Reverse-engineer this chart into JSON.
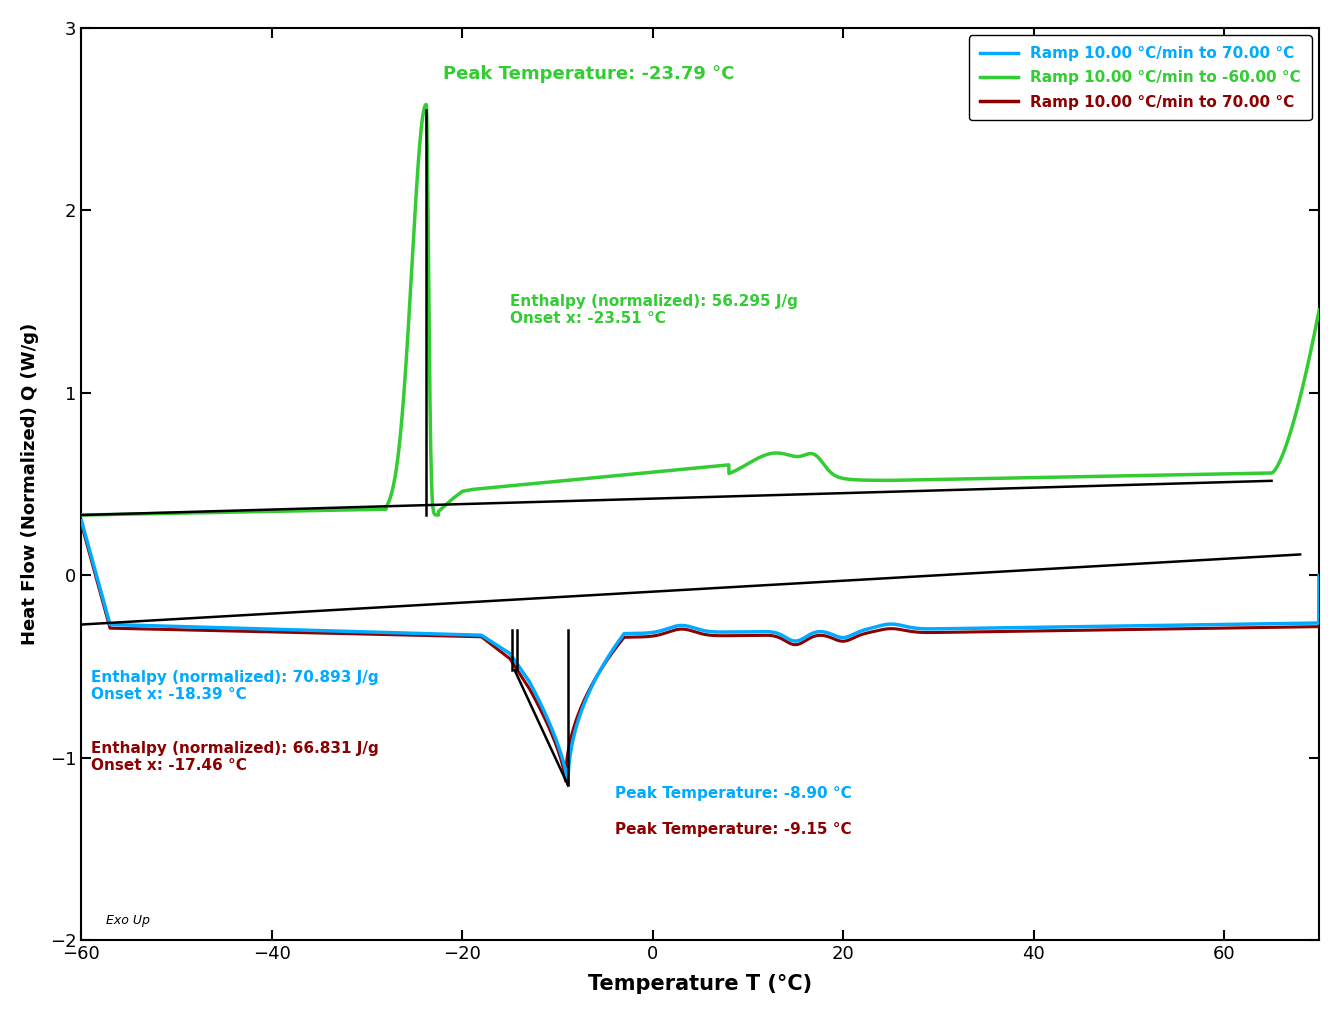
{
  "xlabel": "Temperature Τ (°C)",
  "ylabel": "Heat Flow (Normalized) Q (W/g)",
  "xlim": [
    -60,
    70
  ],
  "ylim": [
    -2,
    3
  ],
  "xticks": [
    -60,
    -40,
    -20,
    0,
    20,
    40,
    60
  ],
  "yticks": [
    -2,
    -1,
    0,
    1,
    2,
    3
  ],
  "blue_color": "#00AAFF",
  "green_color": "#33CC33",
  "dark_red_color": "#8B0000",
  "legend_entries": [
    {
      "label": "Ramp 10.00 °C/min to 70.00 °C",
      "color": "#00AAFF"
    },
    {
      "label": "Ramp 10.00 °C/min to -60.00 °C",
      "color": "#33CC33"
    },
    {
      "label": "Ramp 10.00 °C/min to 70.00 °C",
      "color": "#8B0000"
    }
  ]
}
